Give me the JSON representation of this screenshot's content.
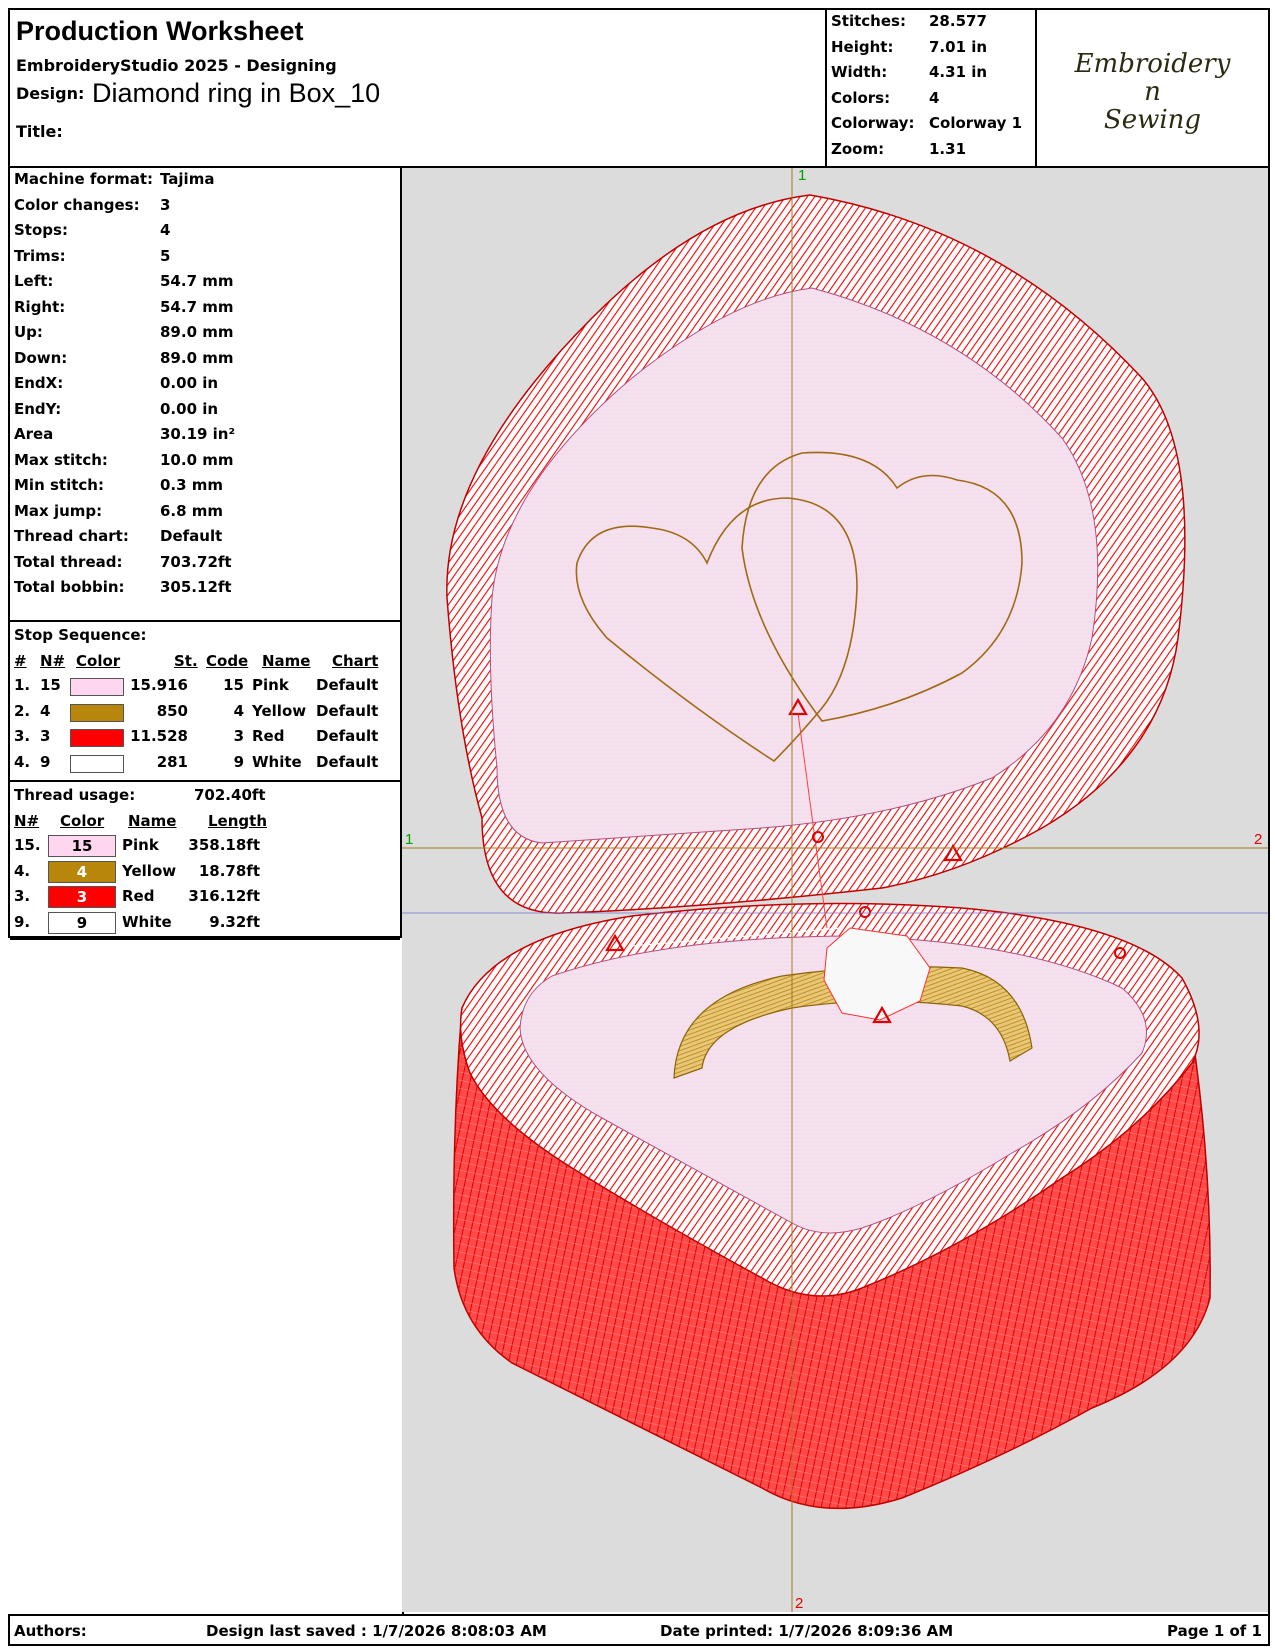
{
  "header": {
    "worksheet_title": "Production Worksheet",
    "software": "EmbroideryStudio 2025 - Designing",
    "design_label": "Design:",
    "design_name": "Diamond ring in Box_10",
    "title_label": "Title:",
    "title_value": ""
  },
  "summary": [
    {
      "label": "Stitches:",
      "value": "28.577"
    },
    {
      "label": "Height:",
      "value": "7.01 in"
    },
    {
      "label": "Width:",
      "value": "4.31 in"
    },
    {
      "label": "Colors:",
      "value": "4"
    },
    {
      "label": "Colorway:",
      "value": "Colorway 1"
    },
    {
      "label": "Zoom:",
      "value": "1.31"
    }
  ],
  "logo": {
    "line1": "Embroidery",
    "line2": "n",
    "line3": "Sewing"
  },
  "machine_info": [
    {
      "label": "Machine format:",
      "value": "Tajima"
    },
    {
      "label": "Color changes:",
      "value": "3"
    },
    {
      "label": "Stops:",
      "value": "4"
    },
    {
      "label": "Trims:",
      "value": "5"
    },
    {
      "label": "Left:",
      "value": "54.7 mm"
    },
    {
      "label": "Right:",
      "value": "54.7 mm"
    },
    {
      "label": "Up:",
      "value": "89.0 mm"
    },
    {
      "label": "Down:",
      "value": "89.0 mm"
    },
    {
      "label": "EndX:",
      "value": "0.00 in"
    },
    {
      "label": "EndY:",
      "value": "0.00 in"
    },
    {
      "label": "Area",
      "value": " 30.19 in²"
    },
    {
      "label": "Max stitch:",
      "value": "10.0 mm"
    },
    {
      "label": "Min stitch:",
      "value": "0.3 mm"
    },
    {
      "label": "Max jump:",
      "value": "6.8 mm"
    },
    {
      "label": "Thread chart:",
      "value": "Default"
    },
    {
      "label": "Total thread:",
      "value": "703.72ft"
    },
    {
      "label": "Total bobbin:",
      "value": "305.12ft"
    }
  ],
  "stop_sequence": {
    "title": "Stop Sequence:",
    "headers": {
      "num": "#",
      "n": "N#",
      "color": "Color",
      "st": "St.",
      "code": "Code",
      "name": "Name",
      "chart": "Chart"
    },
    "rows": [
      {
        "num": "1.",
        "n": "15",
        "color": "#ffd6ef",
        "st": "15.916",
        "code": "15",
        "name": "Pink",
        "chart": "Default"
      },
      {
        "num": "2.",
        "n": "4",
        "color": "#b8860b",
        "st": "850",
        "code": "4",
        "name": "Yellow",
        "chart": "Default"
      },
      {
        "num": "3.",
        "n": "3",
        "color": "#ff0000",
        "st": "11.528",
        "code": "3",
        "name": "Red",
        "chart": "Default"
      },
      {
        "num": "4.",
        "n": "9",
        "color": "#ffffff",
        "st": "281",
        "code": "9",
        "name": "White",
        "chart": "Default"
      }
    ]
  },
  "thread_usage": {
    "title": "Thread usage:",
    "total": "702.40ft",
    "headers": {
      "n": "N#",
      "color": "Color",
      "name": "Name",
      "length": "Length"
    },
    "rows": [
      {
        "n": "15.",
        "code": "15",
        "color": "#ffd6ef",
        "name": "Pink",
        "length": "358.18ft"
      },
      {
        "n": "4.",
        "code": "4",
        "color": "#b8860b",
        "name": "Yellow",
        "length": "18.78ft"
      },
      {
        "n": "3.",
        "code": "3",
        "color": "#ff0000",
        "name": "Red",
        "length": "316.12ft"
      },
      {
        "n": "9.",
        "code": "9",
        "color": "#ffffff",
        "name": "White",
        "length": "9.32ft"
      }
    ]
  },
  "axes": {
    "top": "1",
    "bottom": "2",
    "left": "1",
    "right": "2"
  },
  "footer": {
    "authors": "Authors:",
    "saved": "Design last saved : 1/7/2026 8:08:03 AM",
    "printed": "Date printed: 1/7/2026 8:09:36 AM",
    "page": "Page 1 of 1"
  }
}
